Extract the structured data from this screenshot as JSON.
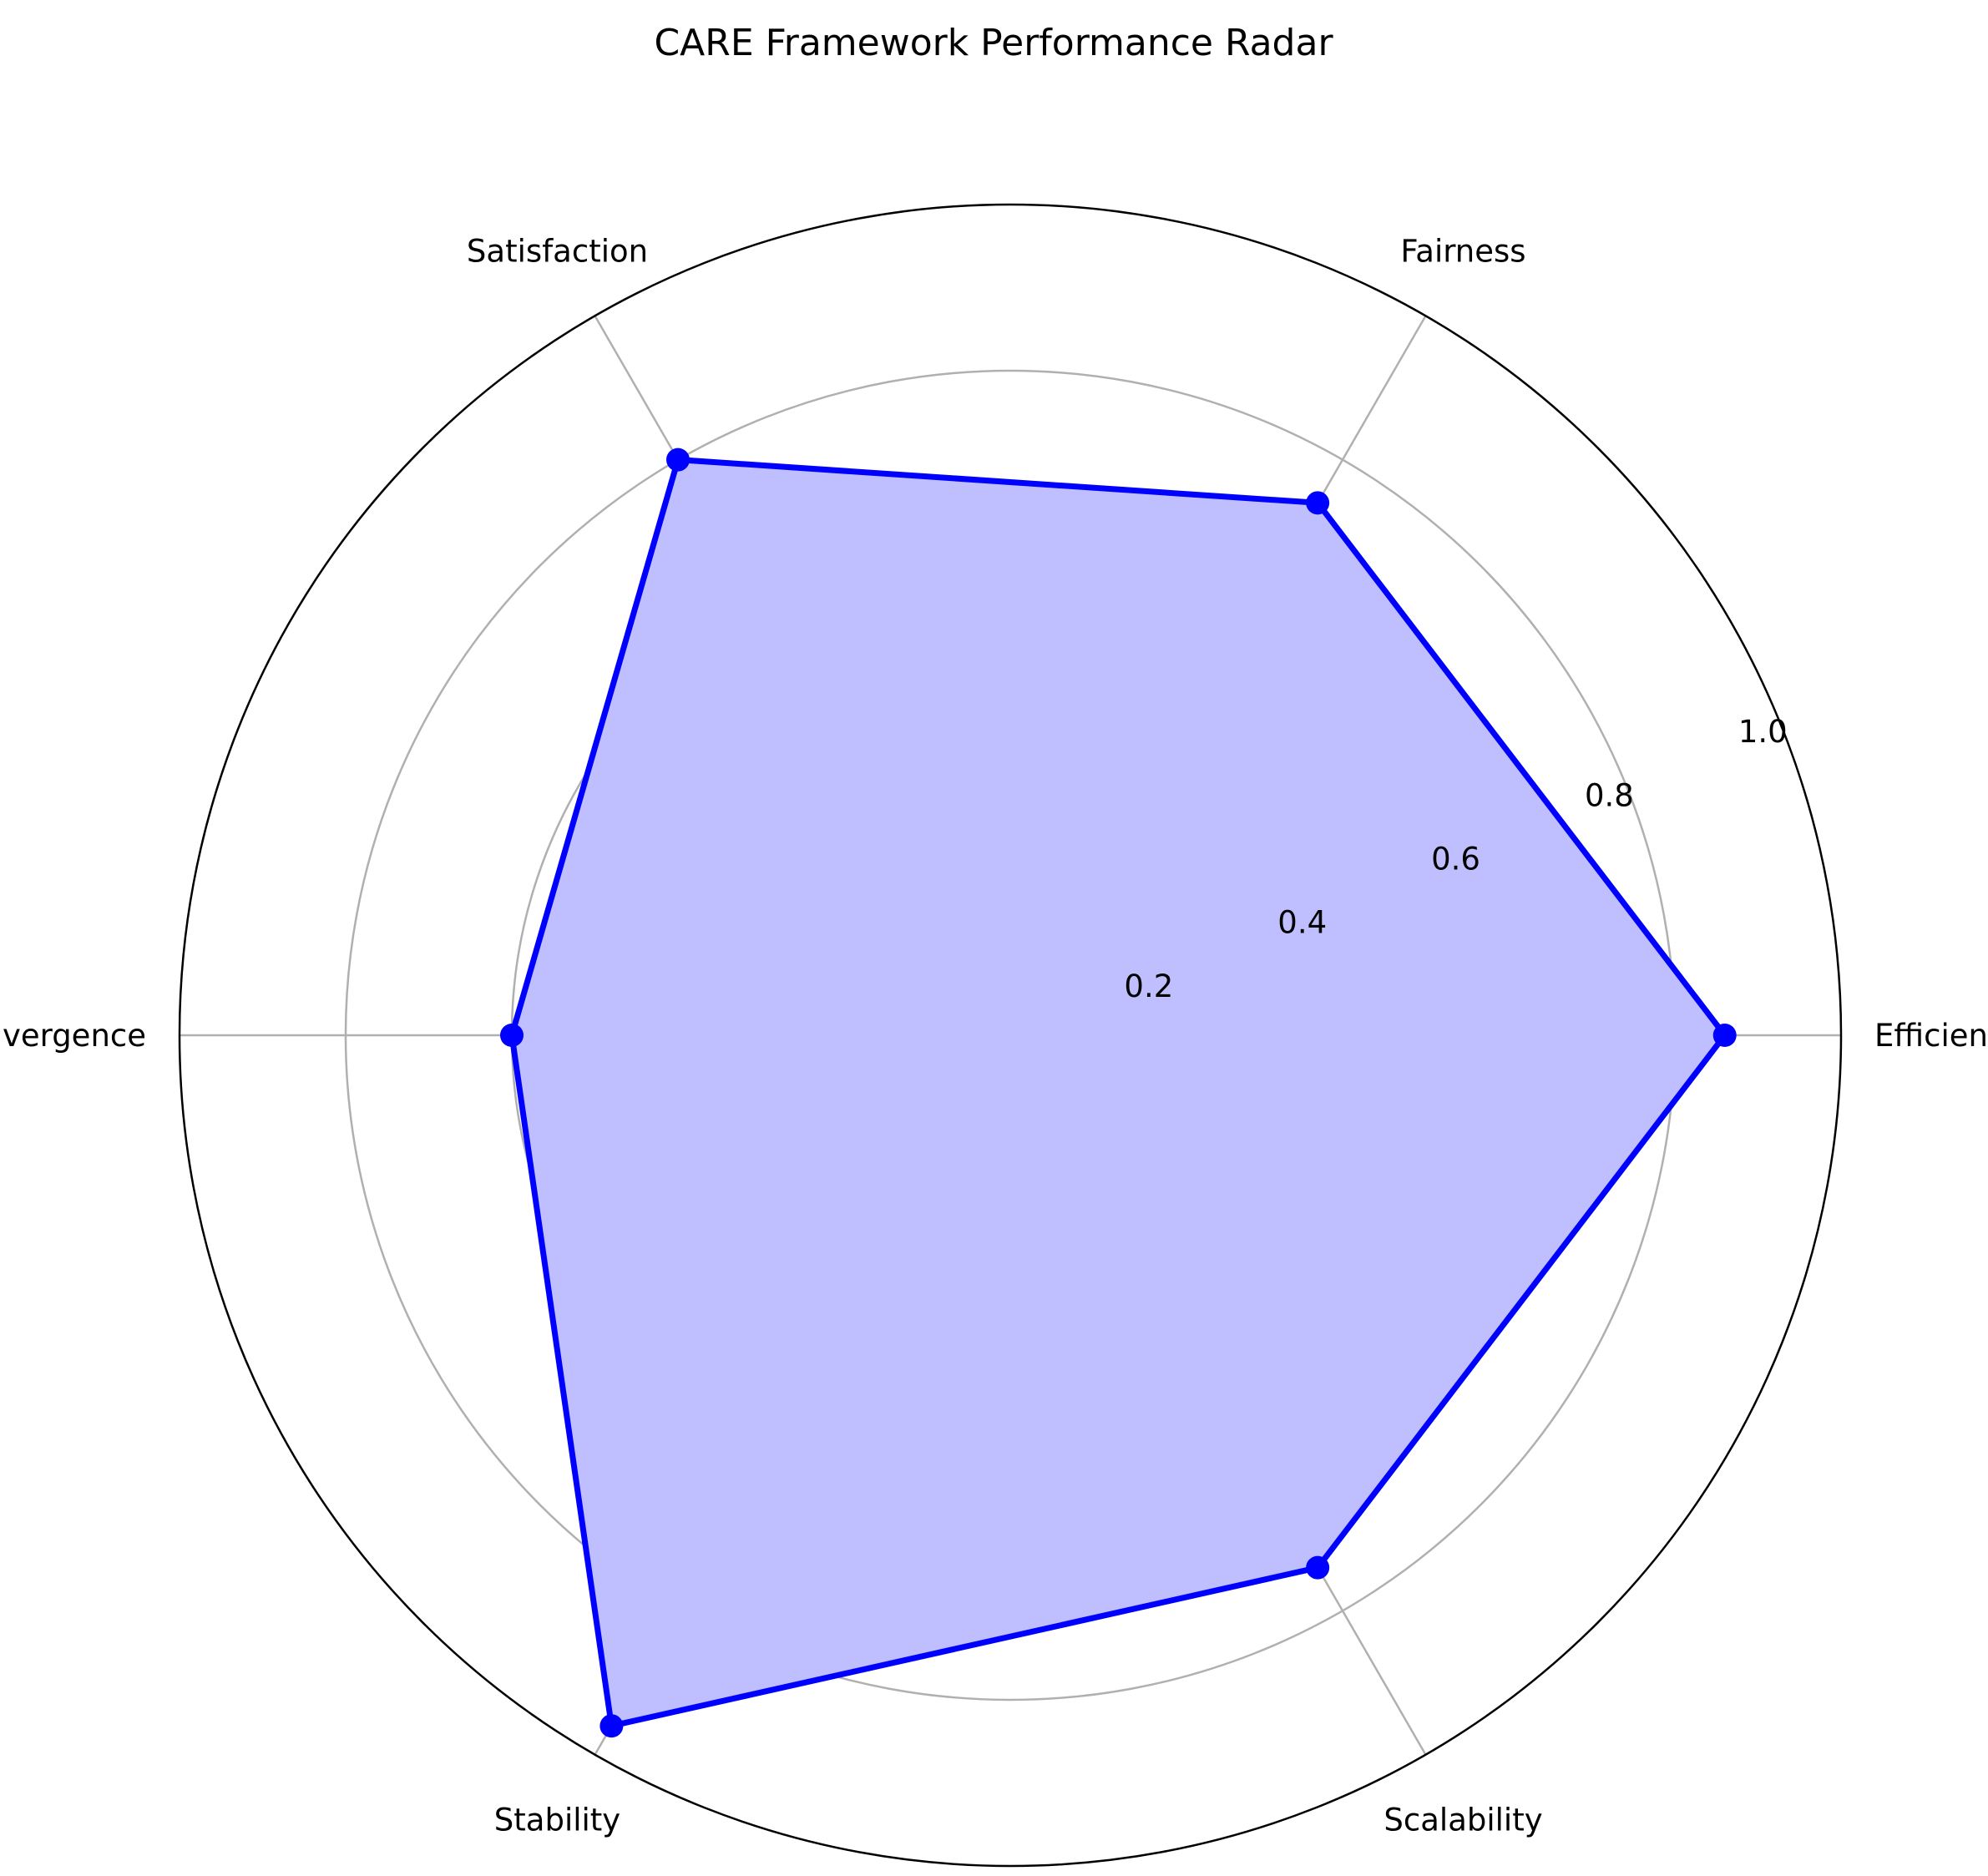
{
  "chart_data": {
    "type": "radar",
    "title": "CARE Framework Performance Radar",
    "categories": [
      "Efficiency",
      "Fairness",
      "Satisfaction",
      "Convergence",
      "Stability",
      "Scalability"
    ],
    "series": [
      {
        "values": [
          0.86,
          0.74,
          0.8,
          0.6,
          0.96,
          0.74
        ]
      }
    ],
    "radial_ticks": [
      "0.2",
      "0.4",
      "0.6",
      "0.8",
      "1.0"
    ],
    "radial_tick_values": [
      0.2,
      0.4,
      0.6,
      0.8,
      1.0
    ],
    "rlim": [
      0,
      1.0
    ],
    "grid": true,
    "colors": {
      "line": "#0000ff",
      "fill": "#bfbfff",
      "grid": "#b0b0b0",
      "frame": "#000000"
    }
  }
}
